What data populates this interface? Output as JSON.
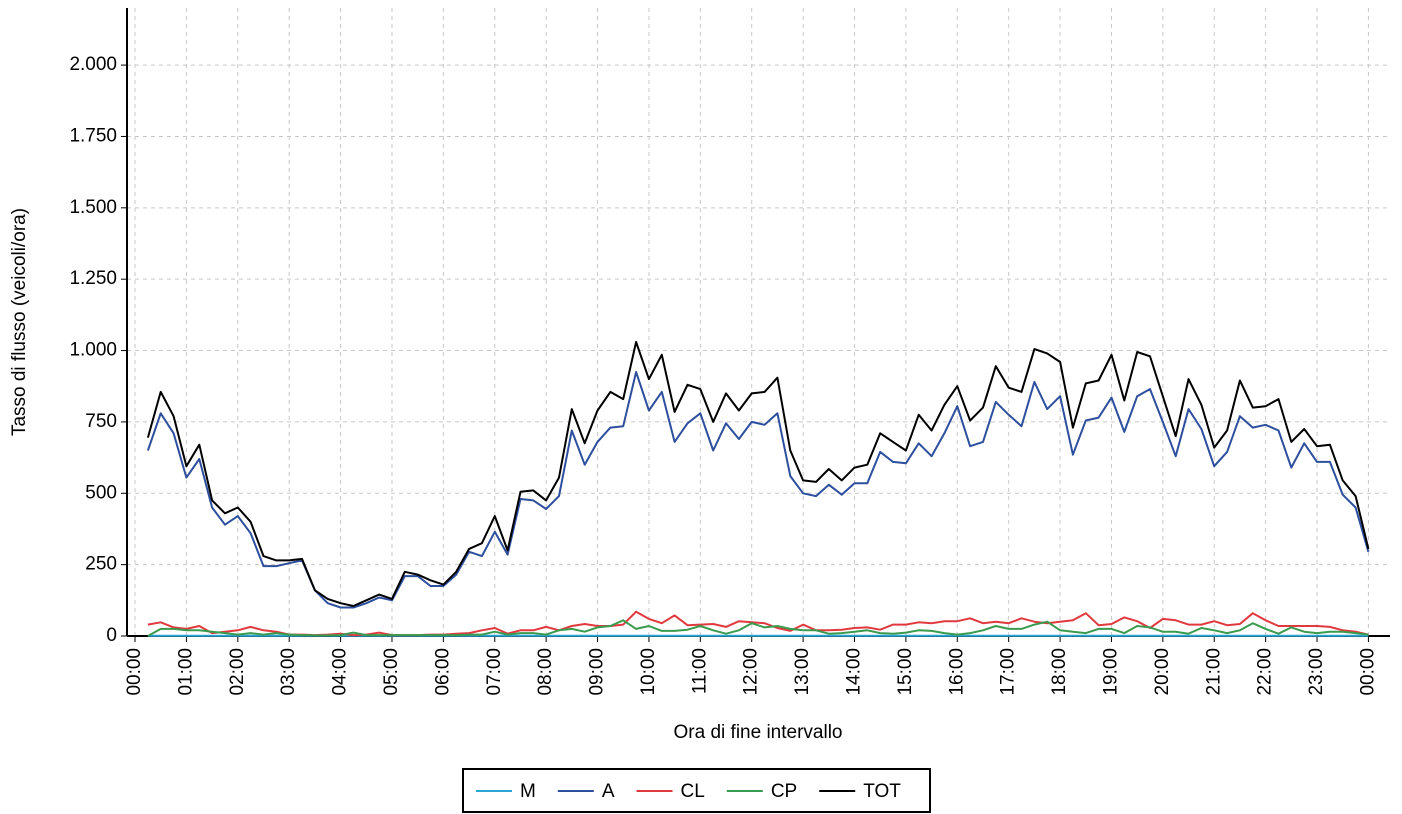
{
  "chart_data": {
    "type": "line",
    "x_label": "Ora di fine intervallo",
    "y_label": "Tasso di flusso (veicoli/ora)",
    "x": [
      0.25,
      0.5,
      0.75,
      1,
      1.25,
      1.5,
      1.75,
      2,
      2.25,
      2.5,
      2.75,
      3,
      3.25,
      3.5,
      3.75,
      4,
      4.25,
      4.5,
      4.75,
      5,
      5.25,
      5.5,
      5.75,
      6,
      6.25,
      6.5,
      6.75,
      7,
      7.25,
      7.5,
      7.75,
      8,
      8.25,
      8.5,
      8.75,
      9,
      9.25,
      9.5,
      9.75,
      10,
      10.25,
      10.5,
      10.75,
      11,
      11.25,
      11.5,
      11.75,
      12,
      12.25,
      12.5,
      12.75,
      13,
      13.25,
      13.5,
      13.75,
      14,
      14.25,
      14.5,
      14.75,
      15,
      15.25,
      15.5,
      15.75,
      16,
      16.25,
      16.5,
      16.75,
      17,
      17.25,
      17.5,
      17.75,
      18,
      18.25,
      18.5,
      18.75,
      19,
      19.25,
      19.5,
      19.75,
      20,
      20.25,
      20.5,
      20.75,
      21,
      21.25,
      21.5,
      21.75,
      22,
      22.25,
      22.5,
      22.75,
      23,
      23.25,
      23.5,
      23.75,
      24
    ],
    "series": [
      {
        "name": "M",
        "color": "#2aa5d6",
        "values": [
          1,
          1,
          1,
          1,
          1,
          1,
          1,
          1,
          1,
          1,
          1,
          1,
          1,
          1,
          1,
          1,
          1,
          1,
          1,
          1,
          1,
          1,
          1,
          1,
          1,
          1,
          1,
          1,
          1,
          1,
          1,
          1,
          1,
          1,
          1,
          1,
          1,
          1,
          1,
          1,
          1,
          1,
          1,
          1,
          1,
          1,
          1,
          1,
          1,
          1,
          1,
          1,
          1,
          1,
          1,
          1,
          1,
          1,
          1,
          1,
          1,
          1,
          1,
          1,
          1,
          1,
          1,
          1,
          1,
          1,
          1,
          1,
          1,
          1,
          1,
          1,
          1,
          1,
          1,
          1,
          1,
          1,
          1,
          1,
          1,
          1,
          1,
          1,
          1,
          1,
          1,
          1,
          1,
          1,
          1,
          1
        ]
      },
      {
        "name": "A",
        "color": "#2d4f9e",
        "values": [
          650,
          780,
          710,
          555,
          620,
          450,
          390,
          420,
          360,
          245,
          245,
          255,
          265,
          160,
          115,
          100,
          100,
          115,
          135,
          125,
          210,
          210,
          175,
          175,
          215,
          295,
          280,
          365,
          285,
          480,
          475,
          445,
          490,
          720,
          600,
          680,
          730,
          735,
          925,
          790,
          855,
          680,
          745,
          780,
          650,
          745,
          690,
          750,
          740,
          780,
          560,
          500,
          490,
          530,
          495,
          535,
          535,
          645,
          610,
          605,
          675,
          630,
          710,
          805,
          665,
          680,
          820,
          775,
          735,
          890,
          795,
          840,
          635,
          755,
          765,
          835,
          715,
          840,
          865,
          750,
          630,
          795,
          725,
          595,
          645,
          770,
          730,
          740,
          720,
          590,
          675,
          610,
          610,
          495,
          450,
          295
        ]
      },
      {
        "name": "CL",
        "color": "#e0393e",
        "values": [
          40,
          48,
          30,
          25,
          35,
          10,
          15,
          20,
          32,
          20,
          15,
          5,
          5,
          3,
          5,
          8,
          3,
          5,
          12,
          3,
          3,
          3,
          5,
          5,
          8,
          10,
          20,
          28,
          8,
          20,
          20,
          32,
          20,
          35,
          42,
          35,
          35,
          40,
          85,
          60,
          45,
          72,
          38,
          40,
          42,
          32,
          52,
          48,
          45,
          28,
          18,
          40,
          20,
          20,
          22,
          28,
          30,
          22,
          40,
          40,
          48,
          45,
          52,
          52,
          62,
          45,
          50,
          45,
          62,
          50,
          45,
          50,
          55,
          80,
          38,
          42,
          65,
          52,
          28,
          60,
          55,
          40,
          40,
          52,
          38,
          42,
          80,
          55,
          35,
          35,
          35,
          35,
          32,
          20,
          15,
          5
        ]
      },
      {
        "name": "CP",
        "color": "#3a9b4f",
        "values": [
          0,
          25,
          25,
          20,
          20,
          15,
          10,
          5,
          10,
          5,
          10,
          5,
          3,
          2,
          2,
          3,
          12,
          3,
          3,
          3,
          3,
          3,
          3,
          3,
          3,
          5,
          5,
          15,
          5,
          10,
          10,
          5,
          20,
          25,
          15,
          30,
          35,
          55,
          25,
          35,
          18,
          18,
          22,
          35,
          20,
          8,
          20,
          45,
          30,
          35,
          25,
          20,
          20,
          8,
          10,
          15,
          20,
          10,
          8,
          12,
          20,
          18,
          10,
          5,
          10,
          20,
          35,
          25,
          25,
          40,
          50,
          20,
          15,
          10,
          25,
          25,
          10,
          35,
          30,
          15,
          15,
          8,
          28,
          20,
          10,
          20,
          45,
          25,
          8,
          30,
          15,
          10,
          15,
          15,
          10,
          5
        ]
      },
      {
        "name": "TOT",
        "color": "#000000",
        "values": [
          695,
          855,
          770,
          595,
          670,
          475,
          430,
          450,
          400,
          280,
          265,
          265,
          270,
          160,
          130,
          115,
          105,
          125,
          145,
          130,
          225,
          215,
          195,
          180,
          225,
          305,
          325,
          420,
          300,
          505,
          510,
          475,
          555,
          795,
          675,
          790,
          855,
          830,
          1030,
          900,
          985,
          785,
          880,
          865,
          750,
          850,
          790,
          850,
          855,
          905,
          650,
          545,
          540,
          585,
          545,
          590,
          600,
          710,
          680,
          650,
          775,
          720,
          810,
          875,
          755,
          800,
          945,
          870,
          855,
          1005,
          990,
          960,
          730,
          885,
          895,
          985,
          825,
          995,
          980,
          840,
          700,
          900,
          810,
          660,
          720,
          895,
          800,
          805,
          830,
          680,
          725,
          665,
          670,
          545,
          490,
          305
        ]
      }
    ],
    "xlim": [
      -0.156,
      24.42
    ],
    "xticks": [
      {
        "value": 0,
        "label": "00:00"
      },
      {
        "value": 1,
        "label": "01:00"
      },
      {
        "value": 2,
        "label": "02:00"
      },
      {
        "value": 3,
        "label": "03:00"
      },
      {
        "value": 4,
        "label": "04:00"
      },
      {
        "value": 5,
        "label": "05:00"
      },
      {
        "value": 6,
        "label": "06:00"
      },
      {
        "value": 7,
        "label": "07:00"
      },
      {
        "value": 8,
        "label": "08:00"
      },
      {
        "value": 9,
        "label": "09:00"
      },
      {
        "value": 10,
        "label": "10:00"
      },
      {
        "value": 11,
        "label": "11:00"
      },
      {
        "value": 12,
        "label": "12:00"
      },
      {
        "value": 13,
        "label": "13:00"
      },
      {
        "value": 14,
        "label": "14:00"
      },
      {
        "value": 15,
        "label": "15:00"
      },
      {
        "value": 16,
        "label": "16:00"
      },
      {
        "value": 17,
        "label": "17:00"
      },
      {
        "value": 18,
        "label": "18:00"
      },
      {
        "value": 19,
        "label": "19:00"
      },
      {
        "value": 20,
        "label": "20:00"
      },
      {
        "value": 21,
        "label": "21:00"
      },
      {
        "value": 22,
        "label": "22:00"
      },
      {
        "value": 23,
        "label": "23:00"
      },
      {
        "value": 24,
        "label": "00:00"
      }
    ],
    "ylim": [
      0,
      2200
    ],
    "yticks": [
      0,
      250,
      500,
      750,
      {
        "value": 1000,
        "label": "1.000"
      },
      {
        "value": 1250,
        "label": "1.250"
      },
      {
        "value": 1500,
        "label": "1.500"
      },
      {
        "value": 1750,
        "label": "1.750"
      },
      {
        "value": 2000,
        "label": "2.000"
      }
    ],
    "grid": true,
    "legend": "bottom"
  }
}
